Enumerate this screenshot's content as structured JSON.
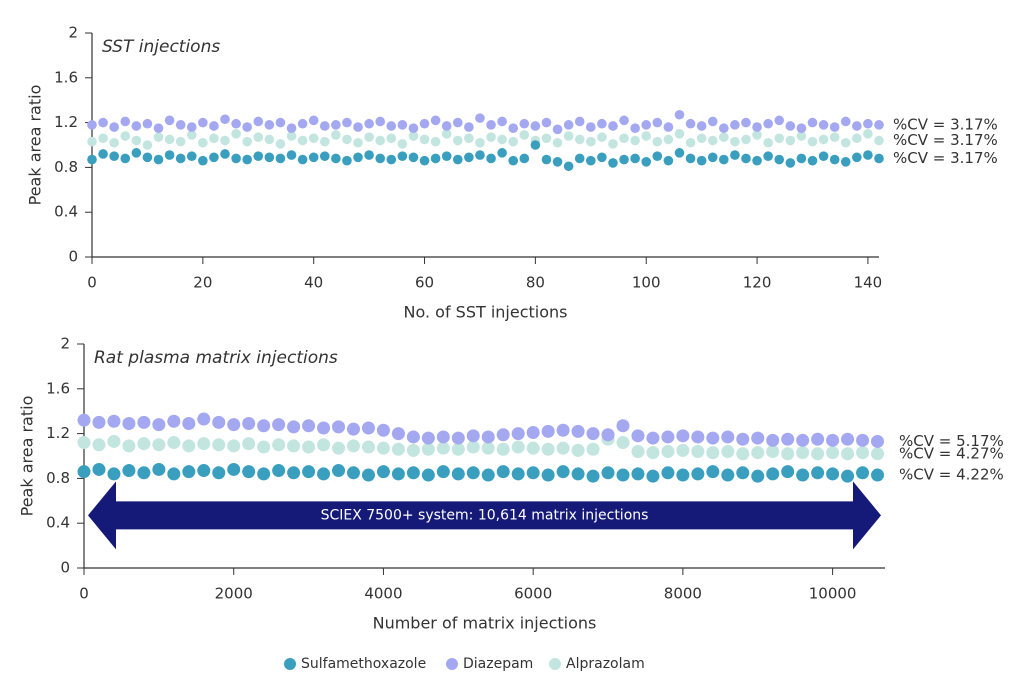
{
  "chart_data": [
    {
      "type": "scatter",
      "title": "SST injections",
      "xlabel": "No. of SST injections",
      "ylabel": "Peak area ratio",
      "xlim": [
        0,
        142
      ],
      "xticks": [
        0,
        20,
        40,
        60,
        80,
        100,
        120,
        140
      ],
      "ylim": [
        0,
        2
      ],
      "yticks": [
        0,
        0.4,
        0.8,
        1.2,
        1.6,
        2
      ],
      "x": [
        0,
        2,
        4,
        6,
        8,
        10,
        12,
        14,
        16,
        18,
        20,
        22,
        24,
        26,
        28,
        30,
        32,
        34,
        36,
        38,
        40,
        42,
        44,
        46,
        48,
        50,
        52,
        54,
        56,
        58,
        60,
        62,
        64,
        66,
        68,
        70,
        72,
        74,
        76,
        78,
        80,
        82,
        84,
        86,
        88,
        90,
        92,
        94,
        96,
        98,
        100,
        102,
        104,
        106,
        108,
        110,
        112,
        114,
        116,
        118,
        120,
        122,
        124,
        126,
        128,
        130,
        132,
        134,
        136,
        138,
        140,
        142
      ],
      "series": [
        {
          "color": "#3a9fbf",
          "cv_label": "%CV = 3.17%",
          "values": [
            0.87,
            0.92,
            0.9,
            0.88,
            0.93,
            0.89,
            0.87,
            0.91,
            0.88,
            0.9,
            0.86,
            0.89,
            0.92,
            0.88,
            0.87,
            0.9,
            0.89,
            0.88,
            0.91,
            0.87,
            0.89,
            0.9,
            0.88,
            0.86,
            0.89,
            0.91,
            0.88,
            0.87,
            0.9,
            0.89,
            0.86,
            0.88,
            0.9,
            0.87,
            0.89,
            0.91,
            0.88,
            0.93,
            0.86,
            0.88,
            1.0,
            0.87,
            0.85,
            0.81,
            0.88,
            0.86,
            0.89,
            0.84,
            0.87,
            0.88,
            0.85,
            0.9,
            0.86,
            0.93,
            0.88,
            0.86,
            0.89,
            0.87,
            0.91,
            0.88,
            0.86,
            0.9,
            0.87,
            0.84,
            0.88,
            0.86,
            0.9,
            0.87,
            0.85,
            0.89,
            0.91,
            0.88
          ]
        },
        {
          "color": "#a3a8f0",
          "cv_label": "%CV = 3.17%",
          "values": [
            1.18,
            1.2,
            1.16,
            1.21,
            1.17,
            1.19,
            1.15,
            1.22,
            1.18,
            1.16,
            1.2,
            1.17,
            1.23,
            1.19,
            1.16,
            1.21,
            1.18,
            1.2,
            1.15,
            1.19,
            1.22,
            1.17,
            1.18,
            1.2,
            1.16,
            1.19,
            1.21,
            1.17,
            1.18,
            1.15,
            1.19,
            1.22,
            1.17,
            1.2,
            1.16,
            1.24,
            1.18,
            1.21,
            1.15,
            1.19,
            1.17,
            1.2,
            1.14,
            1.18,
            1.21,
            1.16,
            1.19,
            1.17,
            1.22,
            1.15,
            1.18,
            1.2,
            1.16,
            1.27,
            1.19,
            1.17,
            1.21,
            1.15,
            1.18,
            1.2,
            1.16,
            1.19,
            1.22,
            1.17,
            1.15,
            1.2,
            1.18,
            1.16,
            1.21,
            1.17,
            1.19,
            1.18
          ]
        },
        {
          "color": "#c2e5df",
          "cv_label": "%CV = 3.17%",
          "values": [
            1.03,
            1.06,
            1.02,
            1.08,
            1.04,
            1.0,
            1.07,
            1.05,
            1.03,
            1.09,
            1.02,
            1.06,
            1.04,
            1.1,
            1.03,
            1.07,
            1.05,
            1.01,
            1.08,
            1.04,
            1.06,
            1.03,
            1.09,
            1.05,
            1.02,
            1.07,
            1.04,
            1.06,
            1.01,
            1.08,
            1.05,
            1.03,
            1.1,
            1.04,
            1.06,
            1.02,
            1.07,
            1.05,
            1.03,
            1.09,
            1.04,
            1.06,
            1.02,
            1.08,
            1.05,
            1.03,
            1.07,
            1.01,
            1.06,
            1.04,
            1.08,
            1.03,
            1.05,
            1.1,
            1.02,
            1.06,
            1.04,
            1.07,
            1.03,
            1.05,
            1.09,
            1.02,
            1.06,
            1.04,
            1.08,
            1.03,
            1.05,
            1.07,
            1.02,
            1.06,
            1.1,
            1.04
          ]
        }
      ]
    },
    {
      "type": "scatter",
      "title": "Rat plasma matrix injections",
      "xlabel": "Number of matrix injections",
      "ylabel": "Peak area ratio",
      "xlim": [
        0,
        10700
      ],
      "xticks": [
        0,
        2000,
        4000,
        6000,
        8000,
        10000
      ],
      "ylim": [
        0,
        2
      ],
      "yticks": [
        0,
        0.4,
        0.8,
        1.2,
        1.6,
        2
      ],
      "annotation": "SCIEX 7500+ system: 10,614 matrix injections",
      "x": [
        0,
        200,
        400,
        600,
        800,
        1000,
        1200,
        1400,
        1600,
        1800,
        2000,
        2200,
        2400,
        2600,
        2800,
        3000,
        3200,
        3400,
        3600,
        3800,
        4000,
        4200,
        4400,
        4600,
        4800,
        5000,
        5200,
        5400,
        5600,
        5800,
        6000,
        6200,
        6400,
        6600,
        6800,
        7000,
        7200,
        7400,
        7600,
        7800,
        8000,
        8200,
        8400,
        8600,
        8800,
        9000,
        9200,
        9400,
        9600,
        9800,
        10000,
        10200,
        10400,
        10600
      ],
      "series": [
        {
          "color": "#3a9fbf",
          "cv_label": "%CV = 4.22%",
          "values": [
            0.86,
            0.88,
            0.84,
            0.87,
            0.85,
            0.88,
            0.84,
            0.86,
            0.87,
            0.85,
            0.88,
            0.86,
            0.84,
            0.87,
            0.85,
            0.86,
            0.84,
            0.87,
            0.85,
            0.83,
            0.86,
            0.84,
            0.85,
            0.83,
            0.86,
            0.84,
            0.85,
            0.83,
            0.86,
            0.84,
            0.85,
            0.83,
            0.86,
            0.84,
            0.82,
            0.85,
            0.83,
            0.84,
            0.82,
            0.85,
            0.83,
            0.84,
            0.86,
            0.83,
            0.85,
            0.82,
            0.84,
            0.86,
            0.83,
            0.85,
            0.84,
            0.82,
            0.85,
            0.83
          ]
        },
        {
          "color": "#a3a8f0",
          "cv_label": "%CV = 5.17%",
          "values": [
            1.32,
            1.3,
            1.31,
            1.29,
            1.3,
            1.28,
            1.31,
            1.29,
            1.33,
            1.3,
            1.28,
            1.29,
            1.27,
            1.28,
            1.26,
            1.27,
            1.25,
            1.26,
            1.24,
            1.25,
            1.23,
            1.2,
            1.17,
            1.16,
            1.17,
            1.16,
            1.18,
            1.17,
            1.19,
            1.2,
            1.21,
            1.22,
            1.23,
            1.22,
            1.2,
            1.19,
            1.27,
            1.18,
            1.16,
            1.17,
            1.18,
            1.17,
            1.16,
            1.17,
            1.15,
            1.16,
            1.14,
            1.15,
            1.14,
            1.15,
            1.14,
            1.15,
            1.14,
            1.13
          ]
        },
        {
          "color": "#c2e5df",
          "cv_label": "%CV = 4.27%",
          "values": [
            1.12,
            1.1,
            1.13,
            1.09,
            1.11,
            1.1,
            1.12,
            1.09,
            1.11,
            1.1,
            1.09,
            1.11,
            1.08,
            1.1,
            1.09,
            1.08,
            1.1,
            1.07,
            1.09,
            1.08,
            1.07,
            1.06,
            1.05,
            1.06,
            1.07,
            1.06,
            1.08,
            1.07,
            1.06,
            1.08,
            1.07,
            1.06,
            1.07,
            1.05,
            1.06,
            1.15,
            1.12,
            1.04,
            1.03,
            1.04,
            1.05,
            1.04,
            1.03,
            1.04,
            1.02,
            1.03,
            1.04,
            1.02,
            1.03,
            1.02,
            1.03,
            1.02,
            1.03,
            1.02
          ]
        }
      ]
    }
  ],
  "legend": {
    "items": [
      "Sulfamethoxazole",
      "Diazepam",
      "Alprazolam"
    ]
  }
}
